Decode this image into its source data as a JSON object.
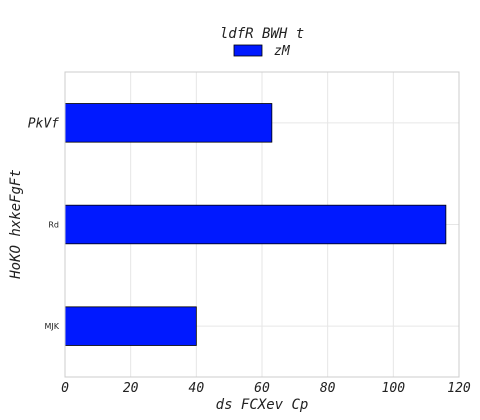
{
  "chart_data": {
    "type": "bar",
    "orientation": "horizontal",
    "title": "ldfR  BWH t",
    "xlabel": "ds FCXev  Cp",
    "ylabel": "HoKO hxkeFgFt",
    "categories": [
      "PkVf",
      "Rd",
      "MJK"
    ],
    "series": [
      {
        "name": "zM",
        "values": [
          63,
          116,
          40
        ],
        "color": "#0019ff"
      }
    ],
    "xlim": [
      0,
      120
    ],
    "xticks": [
      0,
      20,
      40,
      60,
      80,
      100,
      120
    ],
    "grid": true,
    "legend": "top-center"
  }
}
